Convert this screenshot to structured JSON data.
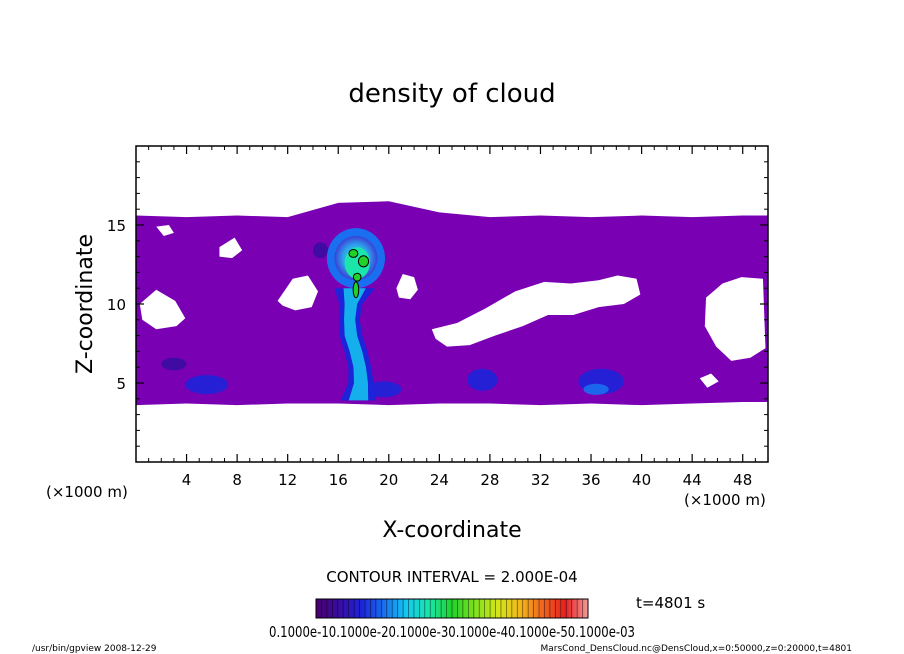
{
  "chart_data": {
    "type": "heatmap",
    "title": "density of cloud",
    "xlabel": "X-coordinate",
    "ylabel": "Z-coordinate",
    "x_unit": "(×1000 m)",
    "x_unit_right": "(×1000 m)",
    "xlim": [
      0,
      50
    ],
    "ylim": [
      0,
      20
    ],
    "xticks": [
      4,
      8,
      12,
      16,
      20,
      24,
      28,
      32,
      36,
      40,
      44,
      48
    ],
    "yticks": [
      5,
      10,
      15
    ],
    "grid": false,
    "contour_interval_text": "CONTOUR INTERVAL = 2.000E-04",
    "time_label": "t=4801 s",
    "colorbar_levels_text": "0.1000e-10.1000e-20.1000e-30.1000e-40.1000e-50.1000e-03",
    "colorbar_colors": [
      "#4a006e",
      "#3a0ca0",
      "#1c23d8",
      "#1a6ff0",
      "#14c8f0",
      "#19e6a8",
      "#22d22a",
      "#7fe01e",
      "#d2e61a",
      "#f2b81a",
      "#ef6420",
      "#e62020",
      "#f59a9a"
    ],
    "cloud_layer_color": "#7a00b4",
    "background_color": "#ffffff",
    "footer_left": "/usr/bin/gpview   2008-12-29",
    "footer_right": "MarsCond_DensCloud.nc@DensCloud,x=0:50000,z=0:20000,t=4801",
    "cloud_layer": {
      "x_km": [
        0,
        4,
        8,
        12,
        16,
        20,
        24,
        28,
        32,
        36,
        40,
        44,
        48,
        50
      ],
      "bottom_km": [
        3.6,
        3.7,
        3.6,
        3.7,
        3.7,
        3.6,
        3.7,
        3.7,
        3.6,
        3.7,
        3.6,
        3.7,
        3.8,
        3.8
      ],
      "top_km": [
        15.6,
        15.5,
        15.6,
        15.5,
        16.4,
        16.5,
        15.8,
        15.5,
        15.6,
        15.5,
        15.6,
        15.5,
        15.6,
        15.6
      ]
    },
    "clear_patches": [
      {
        "x_km": [
          11.2,
          12.4,
          13.6,
          14.4,
          13.9,
          12.6,
          11.6
        ],
        "z_km": [
          10.2,
          11.6,
          11.8,
          10.8,
          9.8,
          9.6,
          9.9
        ]
      },
      {
        "x_km": [
          20.6,
          21.1,
          22.0,
          22.3,
          21.7,
          20.8
        ],
        "z_km": [
          11.0,
          11.9,
          11.7,
          10.9,
          10.3,
          10.4
        ]
      },
      {
        "x_km": [
          23.4,
          25.4,
          27.6,
          30.0,
          32.3,
          34.4,
          36.6,
          38.1,
          39.6,
          39.9,
          38.6,
          36.6,
          34.6,
          32.6,
          30.6,
          28.4,
          26.4,
          24.6,
          23.7
        ],
        "z_km": [
          8.4,
          8.8,
          9.7,
          10.8,
          11.4,
          11.3,
          11.5,
          11.8,
          11.6,
          10.6,
          10.0,
          9.8,
          9.3,
          9.3,
          8.6,
          8.0,
          7.4,
          7.3,
          7.8
        ]
      },
      {
        "x_km": [
          45.1,
          46.4,
          47.9,
          49.6,
          49.8,
          48.6,
          47.1,
          45.9,
          45.0
        ],
        "z_km": [
          10.4,
          11.3,
          11.7,
          11.6,
          7.2,
          6.6,
          6.4,
          7.3,
          8.6
        ]
      },
      {
        "x_km": [
          0.3,
          1.6,
          3.1,
          3.9,
          3.2,
          1.6,
          0.5
        ],
        "z_km": [
          10.0,
          10.9,
          10.2,
          9.1,
          8.6,
          8.4,
          9.0
        ]
      },
      {
        "x_km": [
          6.6,
          7.8,
          8.4,
          7.6,
          6.6
        ],
        "z_km": [
          13.6,
          14.2,
          13.4,
          12.9,
          13.0
        ]
      },
      {
        "x_km": [
          1.6,
          2.6,
          3.0,
          2.2
        ],
        "z_km": [
          14.9,
          15.0,
          14.5,
          14.3
        ]
      },
      {
        "x_km": [
          44.6,
          45.5,
          46.1,
          45.2
        ],
        "z_km": [
          5.3,
          5.6,
          5.1,
          4.7
        ]
      }
    ],
    "dense_blobs": [
      {
        "x_km": 5.6,
        "z_km": 4.9,
        "rx_km": 1.7,
        "rz_km": 0.6,
        "level": 2
      },
      {
        "x_km": 3.0,
        "z_km": 6.2,
        "rx_km": 1.0,
        "rz_km": 0.4,
        "level": 1
      },
      {
        "x_km": 19.6,
        "z_km": 4.6,
        "rx_km": 1.4,
        "rz_km": 0.5,
        "level": 2
      },
      {
        "x_km": 27.4,
        "z_km": 5.2,
        "rx_km": 1.2,
        "rz_km": 0.7,
        "level": 2
      },
      {
        "x_km": 36.8,
        "z_km": 5.1,
        "rx_km": 1.8,
        "rz_km": 0.8,
        "level": 2
      },
      {
        "x_km": 36.4,
        "z_km": 4.6,
        "rx_km": 1.0,
        "rz_km": 0.35,
        "level": 3
      },
      {
        "x_km": 14.6,
        "z_km": 13.4,
        "rx_km": 0.6,
        "rz_km": 0.5,
        "level": 1
      }
    ],
    "plume": {
      "stem": [
        {
          "z_km": 3.9,
          "x_km": 17.6,
          "half_width_km": 1.4
        },
        {
          "z_km": 5.0,
          "x_km": 17.8,
          "half_width_km": 1.0
        },
        {
          "z_km": 6.0,
          "x_km": 17.7,
          "half_width_km": 0.9
        },
        {
          "z_km": 7.0,
          "x_km": 17.4,
          "half_width_km": 0.9
        },
        {
          "z_km": 8.0,
          "x_km": 17.0,
          "half_width_km": 0.9
        },
        {
          "z_km": 9.0,
          "x_km": 16.9,
          "half_width_km": 0.8
        },
        {
          "z_km": 10.0,
          "x_km": 17.0,
          "half_width_km": 0.9
        },
        {
          "z_km": 11.0,
          "x_km": 17.3,
          "half_width_km": 1.6
        }
      ],
      "head": {
        "x_km": 17.4,
        "z_km": 12.9,
        "rx_km": 2.3,
        "rz_km": 1.9
      },
      "inner_head": {
        "x_km": 17.4,
        "z_km": 12.9,
        "rx_km": 1.7,
        "rz_km": 1.4
      },
      "core": {
        "x_km": 17.5,
        "z_km": 12.6,
        "rx_km": 1.0,
        "rz_km": 1.0
      },
      "contours": [
        {
          "x_km": 17.2,
          "z_km": 13.2,
          "rx_km": 0.35,
          "rz_km": 0.25
        },
        {
          "x_km": 18.0,
          "z_km": 12.7,
          "rx_km": 0.4,
          "rz_km": 0.35
        },
        {
          "x_km": 17.5,
          "z_km": 11.7,
          "rx_km": 0.3,
          "rz_km": 0.25
        },
        {
          "x_km": 17.4,
          "z_km": 10.9,
          "rx_km": 0.22,
          "rz_km": 0.5
        }
      ]
    }
  }
}
